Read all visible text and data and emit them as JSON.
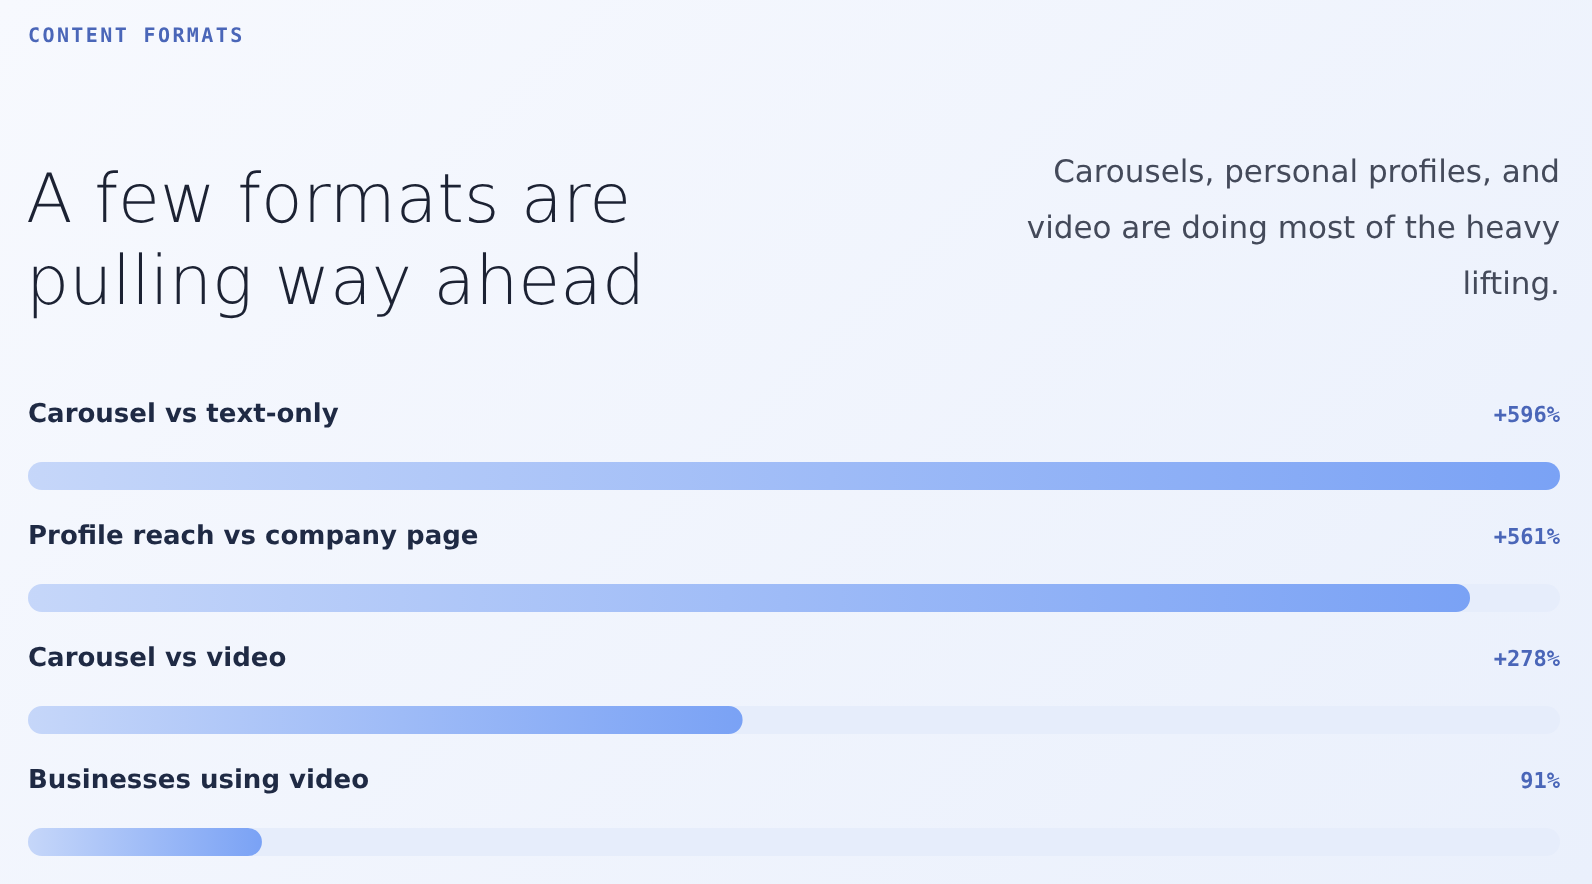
{
  "chart_data": {
    "type": "bar",
    "orientation": "horizontal",
    "annotations": [
      "CONTENT FORMATS"
    ],
    "title": "A few formats are pulling way ahead",
    "subtitle": "Carousels, personal profiles, and video are doing most of the heavy lifting.",
    "categories": [
      "Carousel vs text-only",
      "Profile reach vs company page",
      "Carousel vs video",
      "Businesses using video"
    ],
    "values": [
      596,
      561,
      278,
      91
    ],
    "value_labels": [
      "+596%",
      "+561%",
      "+278%",
      "91%"
    ],
    "color": "#7aa2f5"
  }
}
